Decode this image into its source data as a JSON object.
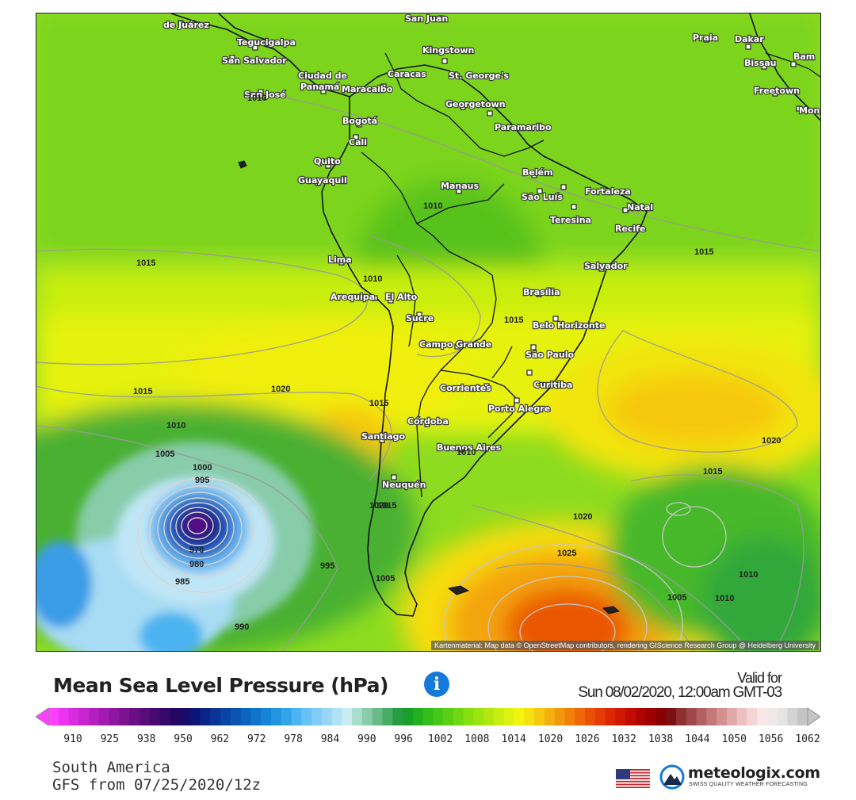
{
  "map": {
    "attribution": "Kartenmaterial: Map data © OpenStreetMap contributors, rendering GIScience Research Group @ Heidelberg University",
    "cities": [
      {
        "name": "de Juárez"
      },
      {
        "name": "Tegucigalpa"
      },
      {
        "name": "San Salvador"
      },
      {
        "name": "Ciudad de"
      },
      {
        "name": "Panamá"
      },
      {
        "name": "San José"
      },
      {
        "name": "Maracaibo"
      },
      {
        "name": "Caracas"
      },
      {
        "name": "San Juan"
      },
      {
        "name": "Kingstown"
      },
      {
        "name": "St. George's"
      },
      {
        "name": "Georgetown"
      },
      {
        "name": "Paramaribo"
      },
      {
        "name": "Bogotá"
      },
      {
        "name": "Cali"
      },
      {
        "name": "Quito"
      },
      {
        "name": "Guayaquil"
      },
      {
        "name": "Manaus"
      },
      {
        "name": "Belém"
      },
      {
        "name": "São Luís"
      },
      {
        "name": "Fortaleza"
      },
      {
        "name": "Natal"
      },
      {
        "name": "Teresina"
      },
      {
        "name": "Recife"
      },
      {
        "name": "Lima"
      },
      {
        "name": "Salvador"
      },
      {
        "name": "Brasília"
      },
      {
        "name": "Arequipa"
      },
      {
        "name": "El Alto"
      },
      {
        "name": "Sucre"
      },
      {
        "name": "Belo Horizonte"
      },
      {
        "name": "Campo Grande"
      },
      {
        "name": "São Paulo"
      },
      {
        "name": "Curitiba"
      },
      {
        "name": "Corrientes"
      },
      {
        "name": "Porto Alegre"
      },
      {
        "name": "Córdoba"
      },
      {
        "name": "Santiago"
      },
      {
        "name": "Buenos Aires"
      },
      {
        "name": "Neuquén"
      },
      {
        "name": "Praia"
      },
      {
        "name": "Dakar"
      },
      {
        "name": "Bissau"
      },
      {
        "name": "Bam"
      },
      {
        "name": "Freetown"
      },
      {
        "name": "Mon"
      }
    ],
    "isobar_labels": [
      "1010",
      "1015",
      "1010",
      "1015",
      "1010",
      "1015",
      "1020",
      "1015",
      "1015",
      "1010",
      "1005",
      "1000",
      "995",
      "1020",
      "1020",
      "1015",
      "1015",
      "1020",
      "1025",
      "1010",
      "1005",
      "1010",
      "995",
      "1005",
      "985",
      "980",
      "970",
      "990",
      "1010"
    ]
  },
  "legend": {
    "title": "Mean Sea Level Pressure (hPa)",
    "info_icon": "i",
    "valid_label": "Valid for",
    "valid_date": "Sun 08/02/2020, 12:00am GMT-03",
    "ticks": [
      "910",
      "925",
      "938",
      "950",
      "962",
      "972",
      "978",
      "984",
      "990",
      "996",
      "1002",
      "1008",
      "1014",
      "1020",
      "1026",
      "1032",
      "1038",
      "1044",
      "1050",
      "1056",
      "1062"
    ],
    "colors": [
      "#ff40ff",
      "#ea35f0",
      "#d82ce0",
      "#c824d0",
      "#b51fc0",
      "#a21ab0",
      "#8f16a0",
      "#7c1290",
      "#690f85",
      "#570c7a",
      "#460a70",
      "#35086a",
      "#250663",
      "#1a0a6a",
      "#0c1478",
      "#0a2488",
      "#0a3496",
      "#0a44a4",
      "#0a54b2",
      "#0a64c0",
      "#0f74cc",
      "#1484d8",
      "#2294e2",
      "#34a4ea",
      "#4cb4f0",
      "#66c2f4",
      "#80ccf6",
      "#98d6f8",
      "#b0e2f6",
      "#c8ecf0",
      "#a8dccc",
      "#88ccaa",
      "#68bc88",
      "#48ac66",
      "#289c44",
      "#18a028",
      "#22b020",
      "#34be1c",
      "#46c818",
      "#5ad014",
      "#70d810",
      "#86e010",
      "#9ce410",
      "#b2e810",
      "#c8ee10",
      "#def210",
      "#f2f410",
      "#f6e010",
      "#f6c810",
      "#f4b00e",
      "#f2980c",
      "#f0800a",
      "#ee6808",
      "#ea5006",
      "#e43c04",
      "#dc2802",
      "#d01800",
      "#c20c00",
      "#b00400",
      "#9c0000",
      "#880000",
      "#7c1010",
      "#8e3030",
      "#a04848",
      "#b26060",
      "#c47878",
      "#d29090",
      "#e0a8a8",
      "#ecc0c0",
      "#f4d4d4",
      "#fae6e6",
      "#f0e8e8",
      "#e4e4e4",
      "#d4d4d4",
      "#c4c4c4"
    ],
    "region": "South America",
    "model": "GFS from 07/25/2020/12z",
    "brand_name": "meteologix.com",
    "brand_tagline": "SWISS QUALITY WEATHER FORECASTING"
  }
}
